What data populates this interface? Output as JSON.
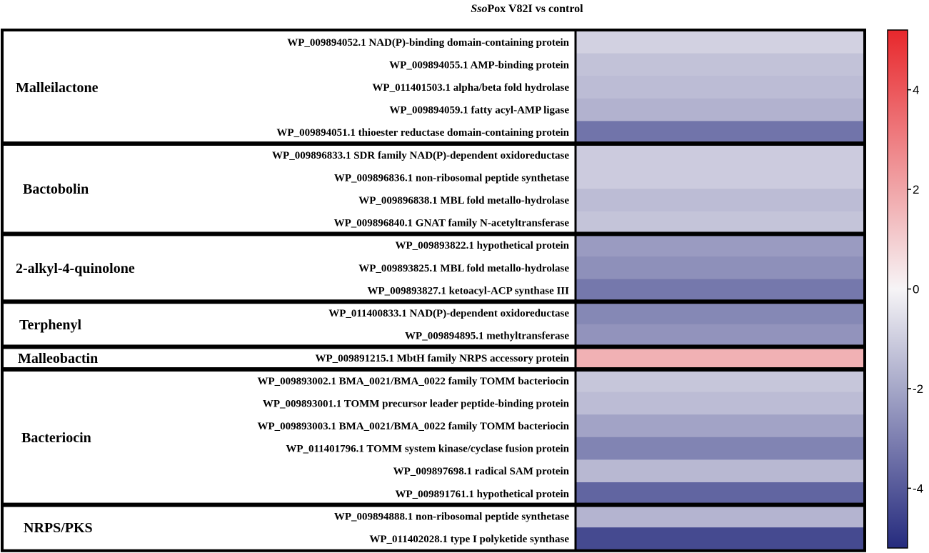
{
  "chart_data": {
    "type": "heatmap",
    "title_italic": "Sso",
    "title_rest": "Pox V82I vs control",
    "colorbar": {
      "range": [
        -5.2,
        5.2
      ],
      "ticks": [
        -4,
        -2,
        0,
        2,
        4
      ],
      "tick_labels": [
        "-4",
        "-2",
        "0",
        "2",
        "4"
      ],
      "colors": {
        "low": "#252b7e",
        "mid": "#f6f4f6",
        "high": "#e8272c"
      }
    },
    "groups": [
      {
        "name": "Malleilactone",
        "genes": [
          {
            "label": "WP_009894052.1 NAD(P)-binding domain-containing protein",
            "value": -0.9
          },
          {
            "label": "WP_009894055.1 AMP-binding protein",
            "value": -1.3
          },
          {
            "label": "WP_011401503.1 alpha/beta fold hydrolase",
            "value": -1.45
          },
          {
            "label": "WP_009894059.1 fatty acyl-AMP ligase",
            "value": -1.7
          },
          {
            "label": "WP_009894051.1 thioester reductase domain-containing protein",
            "value": -3.3
          }
        ]
      },
      {
        "name": "Bactobolin",
        "genes": [
          {
            "label": "WP_009896833.1 SDR family NAD(P)-dependent oxidoreductase",
            "value": -1.05
          },
          {
            "label": "WP_009896836.1 non-ribosomal peptide synthetase",
            "value": -1.05
          },
          {
            "label": "WP_009896838.1 MBL fold metallo-hydrolase",
            "value": -1.45
          },
          {
            "label": "WP_009896840.1 GNAT family N-acetyltransferase",
            "value": -1.25
          }
        ]
      },
      {
        "name": "2-alkyl-4-quinolone",
        "genes": [
          {
            "label": "WP_009893822.1 hypothetical protein",
            "value": -2.3
          },
          {
            "label": "WP_009893825.1 MBL fold metallo-hydrolase",
            "value": -2.6
          },
          {
            "label": "WP_009893827.1 ketoacyl-ACP synthase III",
            "value": -3.2
          }
        ]
      },
      {
        "name": "Terphenyl",
        "genes": [
          {
            "label": "WP_011400833.1 NAD(P)-dependent oxidoreductase",
            "value": -2.8
          },
          {
            "label": "WP_009894895.1 methyltransferase",
            "value": -2.5
          }
        ]
      },
      {
        "name": "Malleobactin",
        "genes": [
          {
            "label": "WP_009891215.1 MbtH family NRPS accessory protein",
            "value": 1.7
          }
        ]
      },
      {
        "name": "Bacteriocin",
        "genes": [
          {
            "label": "WP_009893002.1 BMA_0021/BMA_0022 family TOMM bacteriocin",
            "value": -1.2
          },
          {
            "label": "WP_009893001.1 TOMM precursor leader peptide-binding protein",
            "value": -1.45
          },
          {
            "label": "WP_009893003.1 BMA_0021/BMA_0022 family TOMM bacteriocin",
            "value": -2.1
          },
          {
            "label": "WP_011401796.1 TOMM system kinase/cyclase fusion protein",
            "value": -2.9
          },
          {
            "label": "WP_009897698.1 radical SAM protein",
            "value": -1.55
          },
          {
            "label": "WP_009891761.1 hypothetical protein",
            "value": -3.7
          }
        ]
      },
      {
        "name": "NRPS/PKS",
        "genes": [
          {
            "label": "WP_009894888.1 non-ribosomal peptide synthetase",
            "value": -1.65
          },
          {
            "label": "WP_011402028.1 type I polyketide synthase",
            "value": -4.4
          }
        ]
      }
    ]
  }
}
